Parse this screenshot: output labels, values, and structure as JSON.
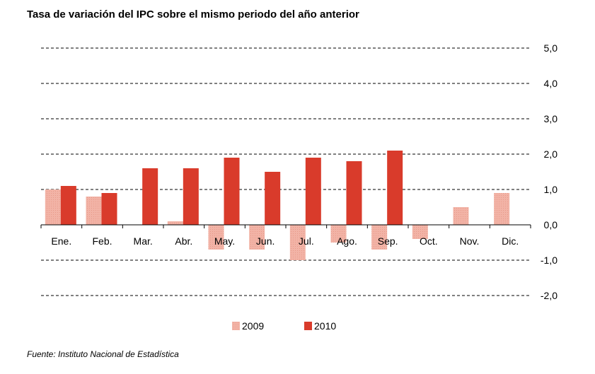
{
  "title": "Tasa de variación del IPC sobre el mismo periodo del año anterior",
  "source": "Fuente: Instituto Nacional de Estadística",
  "colors": {
    "s2009": "#f2b3a6",
    "s2010": "#d93b2b",
    "grid": "#000000"
  },
  "chart_data": {
    "type": "bar",
    "title": "Tasa de variación del IPC sobre el mismo periodo del año anterior",
    "categories": [
      "Ene.",
      "Feb.",
      "Mar.",
      "Abr.",
      "May.",
      "Jun.",
      "Jul.",
      "Ago.",
      "Sep.",
      "Oct.",
      "Nov.",
      "Dic."
    ],
    "series": [
      {
        "name": "2009",
        "values": [
          1.0,
          0.8,
          0.0,
          0.1,
          -0.7,
          -0.7,
          -1.0,
          -0.5,
          -0.7,
          -0.4,
          0.5,
          0.9
        ]
      },
      {
        "name": "2010",
        "values": [
          1.1,
          0.9,
          1.6,
          1.6,
          1.9,
          1.5,
          1.9,
          1.8,
          2.1,
          null,
          null,
          null
        ]
      }
    ],
    "yticks": [
      "5,0",
      "4,0",
      "3,0",
      "2,0",
      "1,0",
      "0,0",
      "-1,0",
      "-2,0"
    ],
    "ylim": [
      -2,
      5
    ],
    "grid": true,
    "legend": "bottom-center"
  }
}
